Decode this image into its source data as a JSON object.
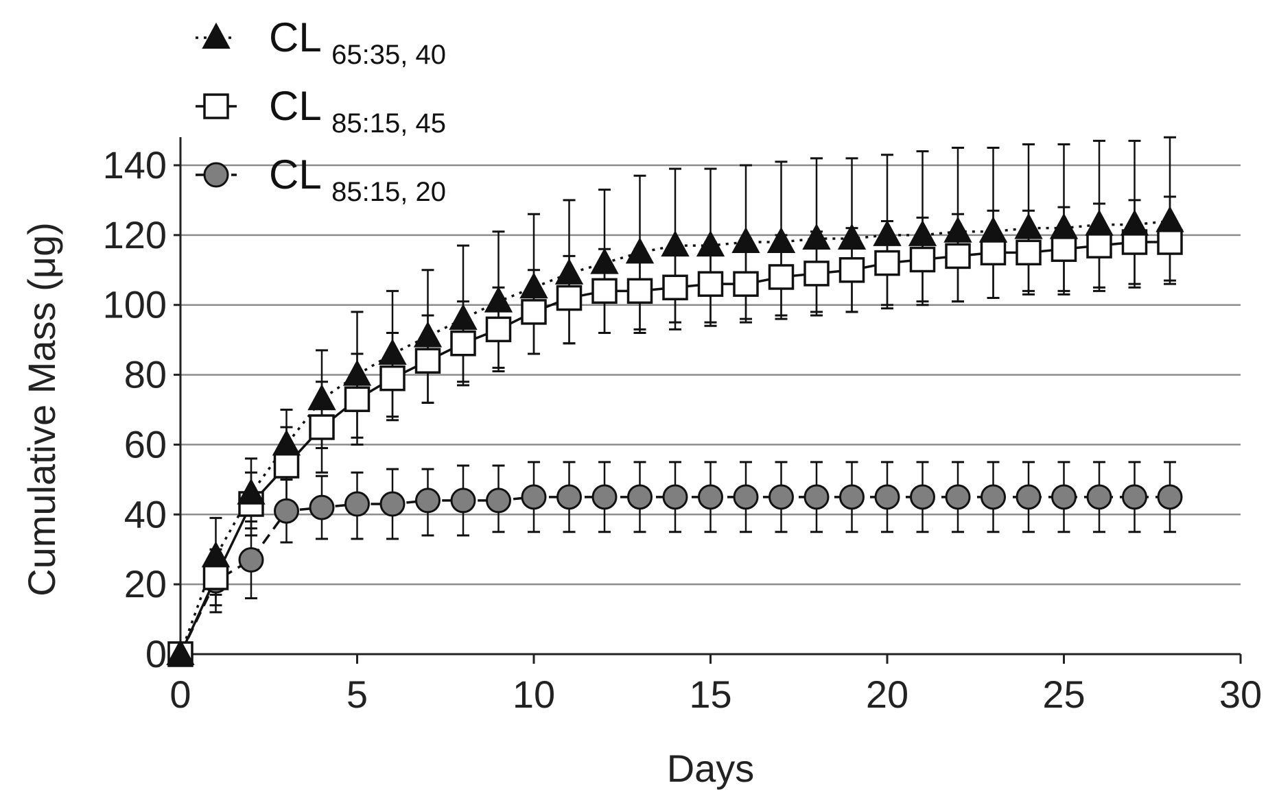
{
  "chart_data": {
    "type": "line",
    "xlabel": "Days",
    "ylabel": "Cumulative Mass (μg)",
    "xlim": [
      0,
      30
    ],
    "ylim": [
      0,
      150
    ],
    "xticks": [
      "0",
      "5",
      "10",
      "15",
      "20",
      "25",
      "30"
    ],
    "yticks": [
      "0",
      "20",
      "40",
      "60",
      "80",
      "100",
      "120",
      "140"
    ],
    "grid": "horizontal",
    "legend_position": "top-left",
    "x": [
      0,
      1,
      2,
      3,
      4,
      5,
      6,
      7,
      8,
      9,
      10,
      11,
      12,
      13,
      14,
      15,
      16,
      17,
      18,
      19,
      20,
      21,
      22,
      23,
      24,
      25,
      26,
      27,
      28
    ],
    "series": [
      {
        "name": "CL",
        "name_sub": "65:35, 40",
        "marker": "triangle",
        "line_style": "dotted",
        "color": "#111111",
        "values": [
          0,
          28,
          46,
          60,
          73,
          80,
          86,
          91,
          96,
          101,
          105,
          109,
          112,
          115,
          117,
          117,
          118,
          118,
          119,
          119,
          120,
          120,
          121,
          121,
          122,
          122,
          123,
          123,
          124
        ],
        "error_upper": [
          0,
          39,
          56,
          70,
          87,
          98,
          104,
          110,
          117,
          121,
          126,
          130,
          133,
          137,
          139,
          139,
          140,
          141,
          142,
          142,
          143,
          144,
          145,
          145,
          146,
          146,
          147,
          147,
          148
        ],
        "error_lower": [
          0,
          17,
          36,
          50,
          59,
          62,
          68,
          72,
          78,
          82,
          86,
          89,
          92,
          93,
          95,
          95,
          96,
          97,
          98,
          98,
          100,
          101,
          101,
          102,
          104,
          104,
          105,
          106,
          107
        ]
      },
      {
        "name": "CL",
        "name_sub": "85:15, 45",
        "marker": "square",
        "line_style": "solid",
        "color": "#111111",
        "values": [
          0,
          22,
          43,
          54,
          65,
          73,
          79,
          84,
          89,
          93,
          98,
          102,
          104,
          104,
          105,
          106,
          106,
          108,
          109,
          110,
          112,
          113,
          114,
          115,
          115,
          116,
          117,
          118,
          118
        ],
        "error_upper": [
          0,
          30,
          52,
          65,
          78,
          86,
          92,
          97,
          101,
          105,
          110,
          114,
          116,
          116,
          117,
          118,
          119,
          120,
          121,
          122,
          124,
          125,
          126,
          127,
          127,
          128,
          129,
          130,
          131
        ],
        "error_lower": [
          0,
          14,
          34,
          43,
          52,
          60,
          67,
          72,
          77,
          81,
          86,
          89,
          92,
          92,
          93,
          94,
          95,
          96,
          97,
          98,
          99,
          100,
          101,
          102,
          103,
          103,
          104,
          105,
          106
        ]
      },
      {
        "name": "CL",
        "name_sub": "85:15, 20",
        "marker": "circle",
        "line_style": "dashed",
        "color": "#7f7f7f",
        "values": [
          0,
          21,
          27,
          41,
          42,
          43,
          43,
          44,
          44,
          44,
          45,
          45,
          45,
          45,
          45,
          45,
          45,
          45,
          45,
          45,
          45,
          45,
          45,
          45,
          45,
          45,
          45,
          45,
          45
        ],
        "error_upper": [
          0,
          30,
          38,
          50,
          51,
          52,
          53,
          53,
          54,
          54,
          55,
          55,
          55,
          55,
          55,
          55,
          55,
          55,
          55,
          55,
          55,
          55,
          55,
          55,
          55,
          55,
          55,
          55,
          55
        ],
        "error_lower": [
          0,
          12,
          16,
          32,
          33,
          33,
          33,
          34,
          34,
          35,
          35,
          35,
          35,
          35,
          35,
          35,
          35,
          35,
          35,
          35,
          35,
          35,
          35,
          35,
          35,
          35,
          35,
          35,
          35
        ]
      }
    ]
  },
  "colors": {
    "grid": "#8c8c8c",
    "axis": "#222222",
    "text": "#222222",
    "marker_stroke": "#111111",
    "filled_triangle": "#111111",
    "open_square_fill": "#ffffff",
    "circle_fill": "#7f7f7f"
  }
}
